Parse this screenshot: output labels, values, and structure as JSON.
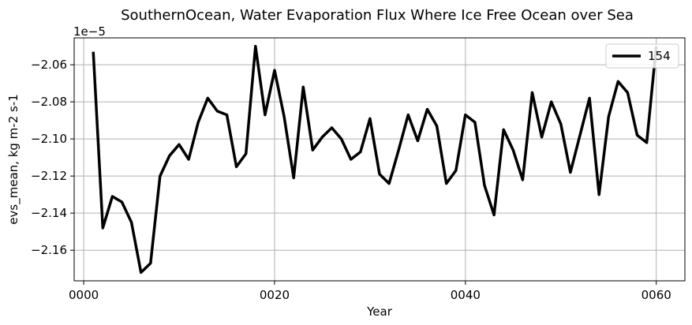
{
  "chart_data": {
    "type": "line",
    "title": "SouthernOcean, Water Evaporation Flux Where Ice Free Ocean over Sea",
    "xlabel": "Year",
    "ylabel": "evs_mean, kg m-2 s-1",
    "offset_label": "1e−5",
    "y_scale_factor": 1e-05,
    "grid": true,
    "legend_position": "upper right",
    "xlim": [
      -1,
      63
    ],
    "ylim": [
      -2.1765,
      -2.0455
    ],
    "x_ticks": [
      0,
      20,
      40,
      60
    ],
    "x_tick_labels": [
      "0000",
      "0020",
      "0040",
      "0060"
    ],
    "y_ticks": [
      -2.16,
      -2.14,
      -2.12,
      -2.1,
      -2.08,
      -2.06
    ],
    "y_tick_labels": [
      "−2.16",
      "−2.14",
      "−2.12",
      "−2.10",
      "−2.08",
      "−2.06"
    ],
    "series": [
      {
        "name": "154",
        "color": "#000000",
        "x": [
          1,
          2,
          3,
          4,
          5,
          6,
          7,
          8,
          9,
          10,
          11,
          12,
          13,
          14,
          15,
          16,
          17,
          18,
          19,
          20,
          21,
          22,
          23,
          24,
          25,
          26,
          27,
          28,
          29,
          30,
          31,
          32,
          33,
          34,
          35,
          36,
          37,
          38,
          39,
          40,
          41,
          42,
          43,
          44,
          45,
          46,
          47,
          48,
          49,
          50,
          51,
          52,
          53,
          54,
          55,
          56,
          57,
          58,
          59,
          60
        ],
        "values": [
          -2.053,
          -2.148,
          -2.131,
          -2.134,
          -2.145,
          -2.172,
          -2.167,
          -2.12,
          -2.109,
          -2.103,
          -2.111,
          -2.091,
          -2.078,
          -2.085,
          -2.087,
          -2.115,
          -2.108,
          -2.05,
          -2.087,
          -2.063,
          -2.088,
          -2.121,
          -2.072,
          -2.106,
          -2.099,
          -2.094,
          -2.1,
          -2.111,
          -2.107,
          -2.089,
          -2.119,
          -2.124,
          -2.106,
          -2.087,
          -2.101,
          -2.084,
          -2.093,
          -2.124,
          -2.117,
          -2.087,
          -2.091,
          -2.125,
          -2.141,
          -2.095,
          -2.106,
          -2.122,
          -2.075,
          -2.099,
          -2.08,
          -2.092,
          -2.118,
          -2.098,
          -2.078,
          -2.13,
          -2.088,
          -2.069,
          -2.075,
          -2.098,
          -2.102,
          -2.05
        ]
      }
    ]
  }
}
